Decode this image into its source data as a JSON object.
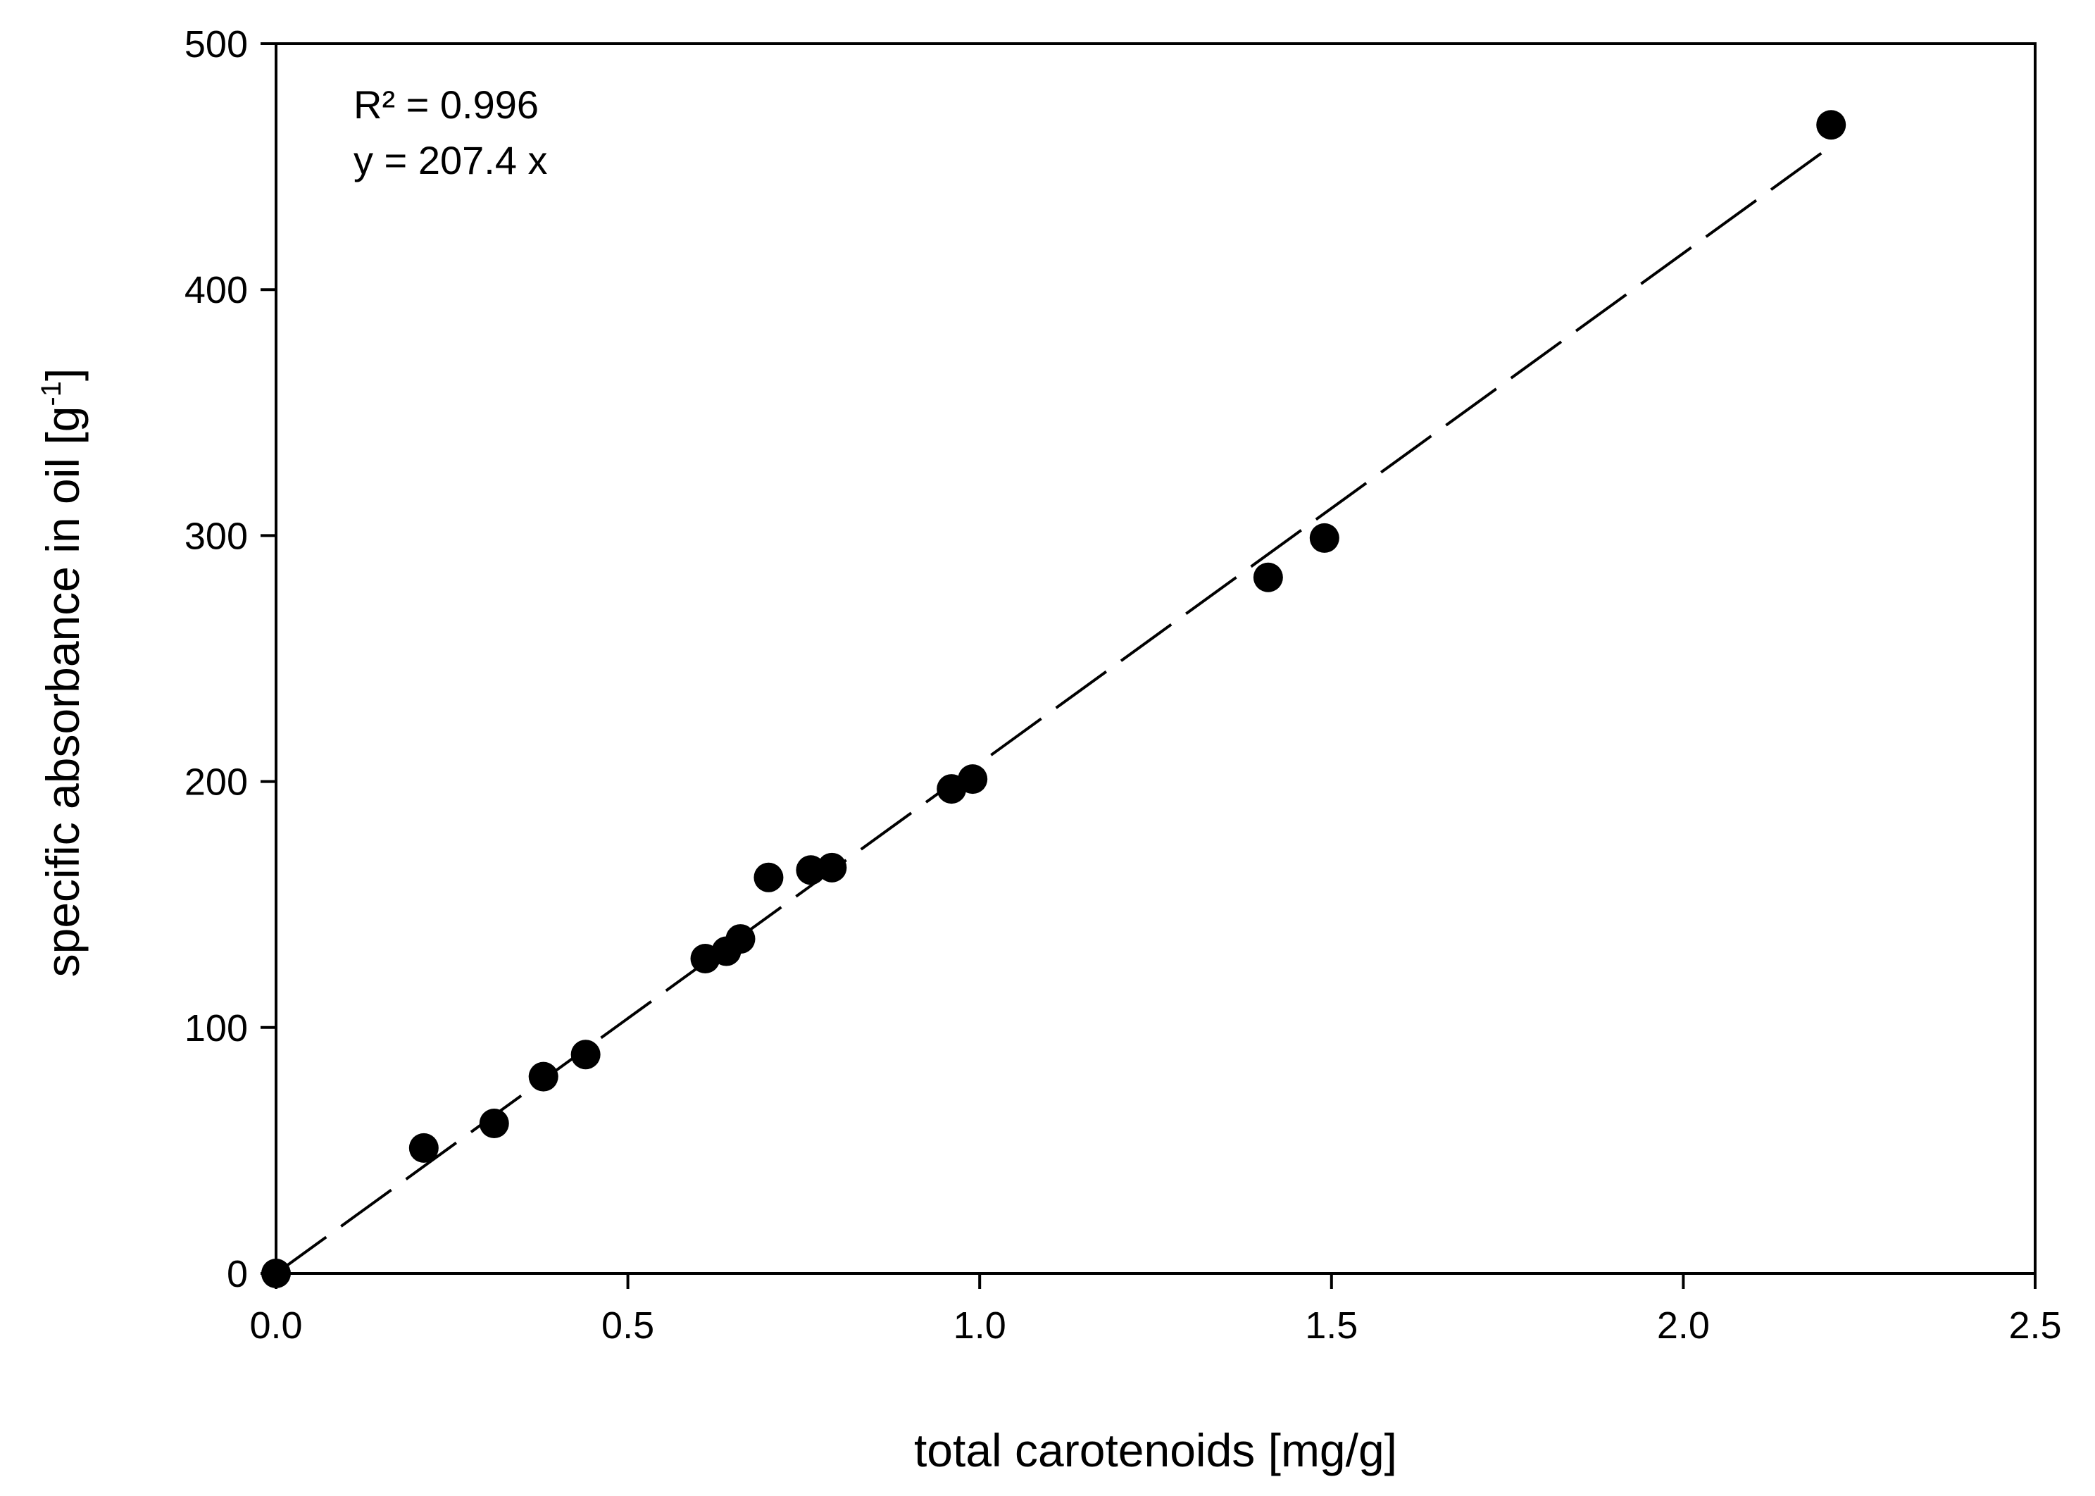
{
  "chart_data": {
    "type": "scatter",
    "xlabel": "total carotenoids [mg/g]",
    "ylabel_parts": {
      "main": "specific absorbance in oil [g",
      "sup": "-1",
      "close": "]"
    },
    "xlim": [
      0,
      2.5
    ],
    "ylim": [
      0,
      500
    ],
    "x_ticks": [
      0.0,
      0.5,
      1.0,
      1.5,
      2.0,
      2.5
    ],
    "x_tick_labels": [
      "0.0",
      "0.5",
      "1.0",
      "1.5",
      "2.0",
      "2.5"
    ],
    "y_ticks": [
      0,
      100,
      200,
      300,
      400,
      500
    ],
    "y_tick_labels": [
      "0",
      "100",
      "200",
      "300",
      "400",
      "500"
    ],
    "grid": false,
    "points": [
      {
        "x": 0.0,
        "y": 0
      },
      {
        "x": 0.21,
        "y": 51
      },
      {
        "x": 0.31,
        "y": 61
      },
      {
        "x": 0.38,
        "y": 80
      },
      {
        "x": 0.44,
        "y": 89
      },
      {
        "x": 0.61,
        "y": 128
      },
      {
        "x": 0.64,
        "y": 131
      },
      {
        "x": 0.66,
        "y": 136
      },
      {
        "x": 0.7,
        "y": 161
      },
      {
        "x": 0.76,
        "y": 164
      },
      {
        "x": 0.79,
        "y": 165
      },
      {
        "x": 0.96,
        "y": 197
      },
      {
        "x": 0.99,
        "y": 201
      },
      {
        "x": 1.41,
        "y": 283
      },
      {
        "x": 1.49,
        "y": 299
      },
      {
        "x": 2.21,
        "y": 467
      }
    ],
    "fit": {
      "slope": 207.4,
      "x_range": [
        0,
        2.21
      ],
      "style": "dashed"
    },
    "annotations": [
      "R² = 0.996",
      "y = 207.4 x"
    ],
    "colors": {
      "points": "#000000",
      "line": "#000000",
      "background": "#ffffff"
    }
  }
}
